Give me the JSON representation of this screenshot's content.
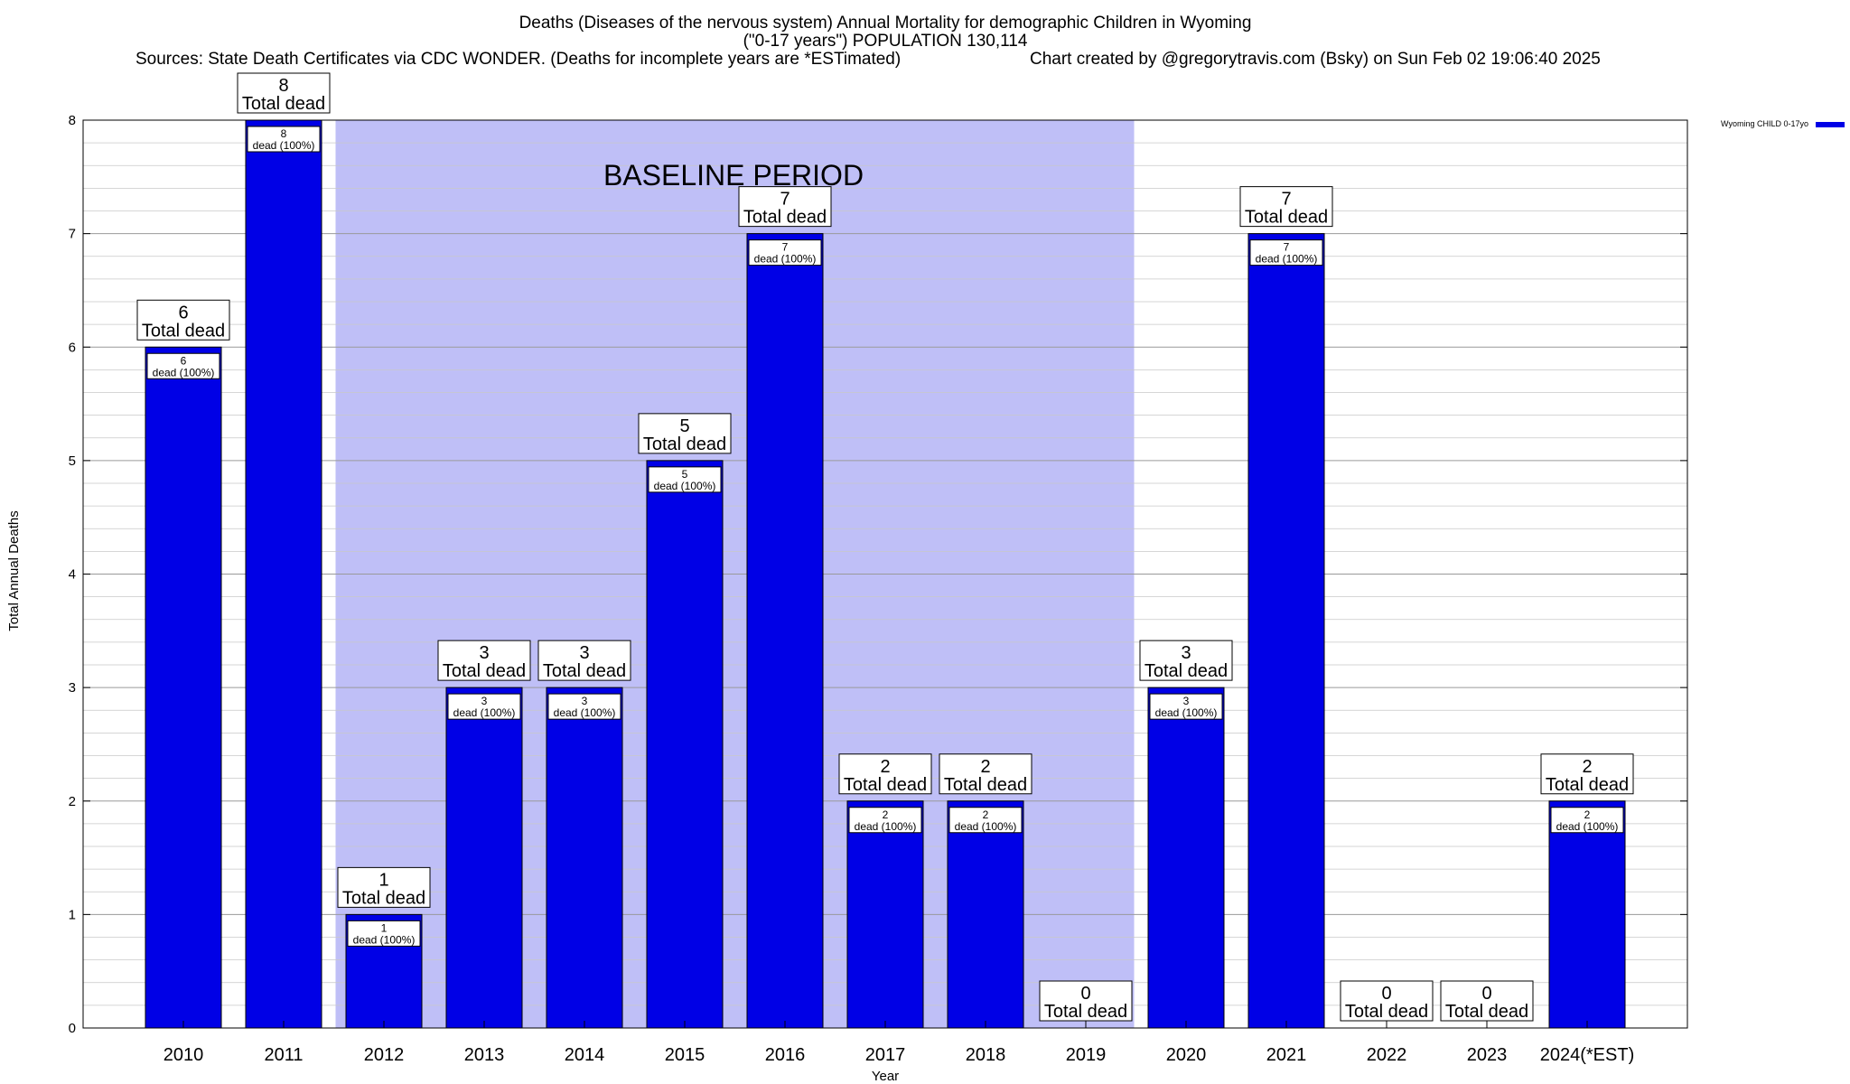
{
  "chart_data": {
    "type": "bar",
    "title_lines": [
      "Deaths (Diseases of the nervous system) Annual Mortality for demographic Children in Wyoming",
      "(\"0-17 years\") POPULATION 130,114"
    ],
    "sources": "Sources: State Death Certificates via CDC WONDER. (Deaths for incomplete years are *ESTimated)",
    "credit": "Chart created by @gregorytravis.com (Bsky) on Sun Feb 02 19:06:40 2025",
    "xlabel": "Year",
    "ylabel": "Total Annual Deaths",
    "ylim": [
      0,
      8
    ],
    "yticks": [
      "0",
      "1",
      "2",
      "3",
      "4",
      "5",
      "6",
      "7",
      "8"
    ],
    "categories": [
      "2010",
      "2011",
      "2012",
      "2013",
      "2014",
      "2015",
      "2016",
      "2017",
      "2018",
      "2019",
      "2020",
      "2021",
      "2022",
      "2023",
      "2024(*EST)"
    ],
    "series": [
      {
        "name": "Wyoming CHILD 0-17yo",
        "values": [
          6,
          8,
          1,
          3,
          3,
          5,
          7,
          2,
          2,
          0,
          3,
          7,
          0,
          0,
          2
        ],
        "color": "#0000e6"
      }
    ],
    "total_label": "Total dead",
    "inner_label": "dead (100%)",
    "baseline": {
      "label": "BASELINE PERIOD",
      "start": "2012",
      "end": "2019",
      "color": "#bfbff7"
    },
    "grid": true,
    "legend_position": "top-right"
  }
}
